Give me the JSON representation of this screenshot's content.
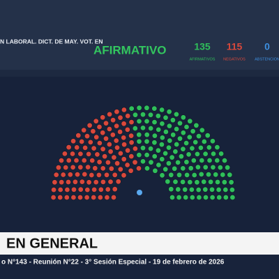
{
  "header": {
    "title": "N LABORAL. DICT. DE MAY. VOT. EN",
    "result": "AFIRMATIVO"
  },
  "tally": [
    {
      "value": 135,
      "label": "AFIRMATIVOS",
      "color": "#2fbf5a"
    },
    {
      "value": 115,
      "label": "NEGATIVOS",
      "color": "#d9483b"
    },
    {
      "value": 0,
      "label": "ABSTENCION",
      "color": "#3d8fe0"
    }
  ],
  "banner": "EN GENERAL",
  "footer": "o N°143 - Reunión N°22 - 3° Sesión Especial - 19 de febrero de 2026"
}
